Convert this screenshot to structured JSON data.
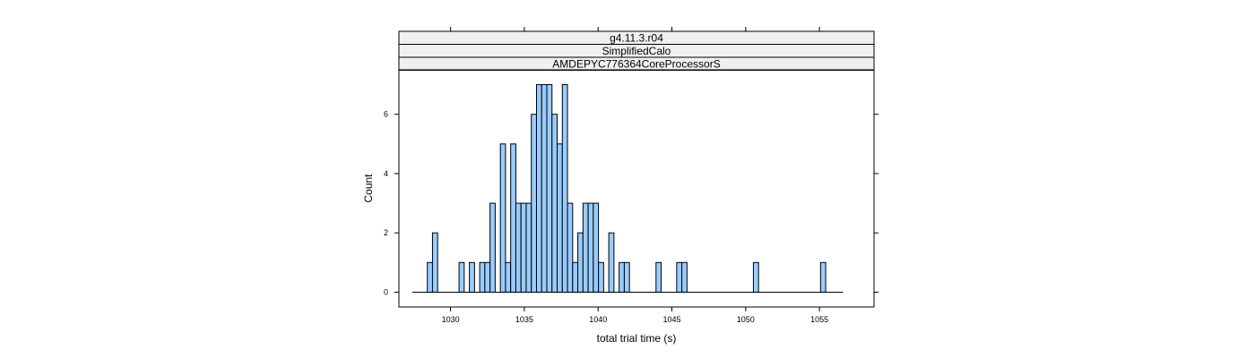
{
  "chart_data": {
    "type": "bar",
    "subtype": "histogram",
    "strips": [
      "g4.11.3.r04",
      "SimplifiedCalo",
      "AMDEPYC776364CoreProcessorS"
    ],
    "xlabel": "total trial time (s)",
    "ylabel": "Count",
    "xlim": [
      1026.5,
      1058.7
    ],
    "ylim": [
      -0.5,
      7.5
    ],
    "x_ticks": [
      1030,
      1035,
      1040,
      1045,
      1050,
      1055
    ],
    "y_ticks": [
      0,
      2,
      4,
      6
    ],
    "bin_width": 0.35,
    "bins_x_range": [
      1027.4,
      1056.6
    ],
    "bins": [
      {
        "x": 1028.6,
        "count": 1
      },
      {
        "x": 1028.95,
        "count": 2
      },
      {
        "x": 1030.75,
        "count": 1
      },
      {
        "x": 1031.45,
        "count": 1
      },
      {
        "x": 1032.15,
        "count": 1
      },
      {
        "x": 1032.5,
        "count": 1
      },
      {
        "x": 1032.85,
        "count": 3
      },
      {
        "x": 1033.55,
        "count": 5
      },
      {
        "x": 1033.9,
        "count": 1
      },
      {
        "x": 1034.25,
        "count": 5
      },
      {
        "x": 1034.6,
        "count": 3
      },
      {
        "x": 1034.95,
        "count": 3
      },
      {
        "x": 1035.3,
        "count": 3
      },
      {
        "x": 1035.65,
        "count": 6
      },
      {
        "x": 1036.0,
        "count": 7
      },
      {
        "x": 1036.35,
        "count": 7
      },
      {
        "x": 1036.7,
        "count": 7
      },
      {
        "x": 1037.05,
        "count": 6
      },
      {
        "x": 1037.4,
        "count": 5
      },
      {
        "x": 1037.75,
        "count": 7
      },
      {
        "x": 1038.1,
        "count": 3
      },
      {
        "x": 1038.45,
        "count": 1
      },
      {
        "x": 1038.8,
        "count": 2
      },
      {
        "x": 1039.15,
        "count": 3
      },
      {
        "x": 1039.5,
        "count": 3
      },
      {
        "x": 1039.85,
        "count": 3
      },
      {
        "x": 1040.2,
        "count": 1
      },
      {
        "x": 1040.9,
        "count": 2
      },
      {
        "x": 1041.6,
        "count": 1
      },
      {
        "x": 1041.95,
        "count": 1
      },
      {
        "x": 1044.1,
        "count": 1
      },
      {
        "x": 1045.5,
        "count": 1
      },
      {
        "x": 1045.85,
        "count": 1
      },
      {
        "x": 1050.7,
        "count": 1
      },
      {
        "x": 1055.25,
        "count": 1
      }
    ],
    "colors": {
      "bar_fill": "#99ccff",
      "bar_stroke": "#000000",
      "strip_fill": "#f0f0f0",
      "frame": "#000000"
    },
    "grid": false,
    "legend": "none"
  }
}
